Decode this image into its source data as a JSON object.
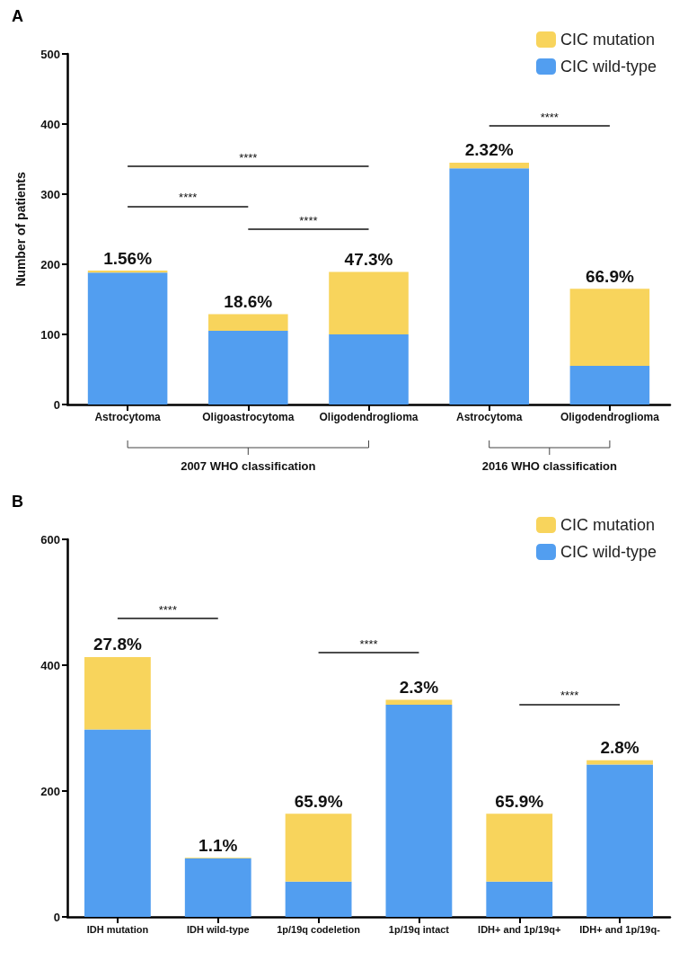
{
  "chart_data": [
    {
      "type": "bar",
      "title": "A",
      "ylabel": "Number of patients",
      "stacked": true,
      "legend": "top right",
      "grid": false,
      "categories": [
        "Astrocytoma",
        "Oligoastrocytoma",
        "Oligodendroglioma",
        "Astrocytoma",
        "Oligodendroglioma"
      ],
      "ylim": [
        0,
        500
      ],
      "yticks": [
        0,
        100,
        200,
        300,
        400,
        500
      ],
      "series": [
        {
          "name": "CIC wild-type",
          "color": "#529ef0",
          "values": [
            188,
            105,
            100,
            337,
            55
          ]
        },
        {
          "name": "CIC mutation",
          "color": "#f8d45c",
          "values": [
            3,
            24,
            89,
            8,
            110
          ]
        }
      ],
      "annotations": [
        "****",
        "****",
        "****",
        "****",
        "2007 WHO classification",
        "2016 WHO classification",
        "1.56%",
        "18.6%",
        "47.3%",
        "2.32%",
        "66.9%"
      ]
    },
    {
      "type": "bar",
      "title": "B",
      "stacked": true,
      "legend": "top right",
      "grid": false,
      "categories": [
        "IDH mutation",
        "IDH wild-type",
        "1p/19q codeletion",
        "1p/19q intact",
        "IDH+ and 1p/19q+",
        "IDH+ and 1p/19q-"
      ],
      "ylim": [
        0,
        600
      ],
      "yticks": [
        0,
        200,
        400,
        600
      ],
      "series": [
        {
          "name": "CIC wild-type",
          "color": "#529ef0",
          "values": [
            298,
            93,
            56,
            337,
            56,
            242
          ]
        },
        {
          "name": "CIC mutation",
          "color": "#f8d45c",
          "values": [
            115,
            1,
            108,
            8,
            108,
            7
          ]
        }
      ],
      "annotations": [
        "****",
        "****",
        "****",
        "27.8%",
        "1.1%",
        "65.9%",
        "2.3%",
        "65.9%",
        "2.8%"
      ]
    }
  ]
}
